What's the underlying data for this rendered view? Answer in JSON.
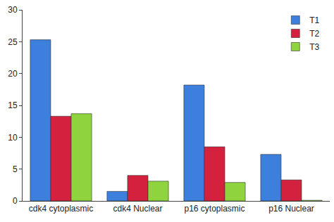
{
  "chart_data": {
    "type": "bar",
    "categories": [
      "cdk4 cytoplasmic",
      "cdk4 Nuclear",
      "p16 cytoplasmic",
      "p16 Nuclear"
    ],
    "series": [
      {
        "name": "T1",
        "color": "#3d7fdc",
        "values": [
          25.3,
          1.5,
          18.2,
          7.3
        ]
      },
      {
        "name": "T2",
        "color": "#d4213d",
        "values": [
          13.3,
          4.0,
          8.5,
          3.3
        ]
      },
      {
        "name": "T3",
        "color": "#8fd43e",
        "values": [
          13.7,
          3.1,
          2.9,
          0.1
        ]
      }
    ],
    "ylim": [
      0,
      30
    ],
    "yticks": [
      0,
      5,
      10,
      15,
      20,
      25,
      30
    ],
    "grid": false,
    "legend": "top-right"
  }
}
